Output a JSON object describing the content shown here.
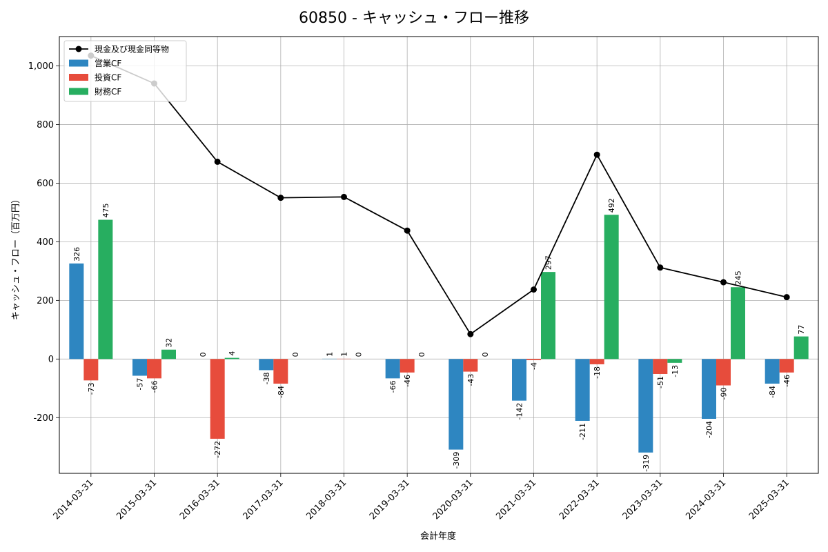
{
  "chart_data": {
    "type": "bar",
    "title": "60850 - キャッシュ・フロー推移",
    "xlabel": "会計年度",
    "ylabel": "キャッシュ・フロー（百万円）",
    "categories": [
      "2014-03-31",
      "2015-03-31",
      "2016-03-31",
      "2017-03-31",
      "2018-03-31",
      "2019-03-31",
      "2020-03-31",
      "2021-03-31",
      "2022-03-31",
      "2023-03-31",
      "2024-03-31",
      "2025-03-31"
    ],
    "ylim": [
      -390,
      1100
    ],
    "yticks": [
      -200,
      0,
      200,
      400,
      600,
      800,
      1000
    ],
    "ytick_labels": [
      "-200",
      "0",
      "200",
      "400",
      "600",
      "800",
      "1,000"
    ],
    "grid": true,
    "legend_position": "top-left",
    "series": [
      {
        "name": "営業CF",
        "kind": "bar",
        "color": "#2e86c1",
        "values": [
          326,
          -57,
          0,
          -38,
          1,
          -66,
          -309,
          -142,
          -211,
          -319,
          -204,
          -84
        ],
        "labels": [
          "326",
          "-57",
          "0",
          "-38",
          "1",
          "-66",
          "-309",
          "-142",
          "-211",
          "-319",
          "-204",
          "-84"
        ]
      },
      {
        "name": "投資CF",
        "kind": "bar",
        "color": "#e74c3c",
        "values": [
          -73,
          -66,
          -272,
          -84,
          1,
          -46,
          -43,
          -4,
          -18,
          -51,
          -90,
          -46
        ],
        "labels": [
          "-73",
          "-66",
          "-272",
          "-84",
          "1",
          "-46",
          "-43",
          "-4",
          "-18",
          "-51",
          "-90",
          "-46"
        ]
      },
      {
        "name": "財務CF",
        "kind": "bar",
        "color": "#27ae60",
        "values": [
          475,
          32,
          4,
          0,
          0,
          0,
          0,
          297,
          492,
          -13,
          245,
          77
        ],
        "labels": [
          "475",
          "32",
          "4",
          "0",
          "0",
          "0",
          "0",
          "297",
          "492",
          "-13",
          "245",
          "77"
        ]
      },
      {
        "name": "現金及び現金同等物",
        "kind": "line",
        "color": "#000000",
        "values": [
          1035,
          940,
          673,
          550,
          553,
          438,
          85,
          237,
          697,
          312,
          262,
          211
        ]
      }
    ]
  }
}
